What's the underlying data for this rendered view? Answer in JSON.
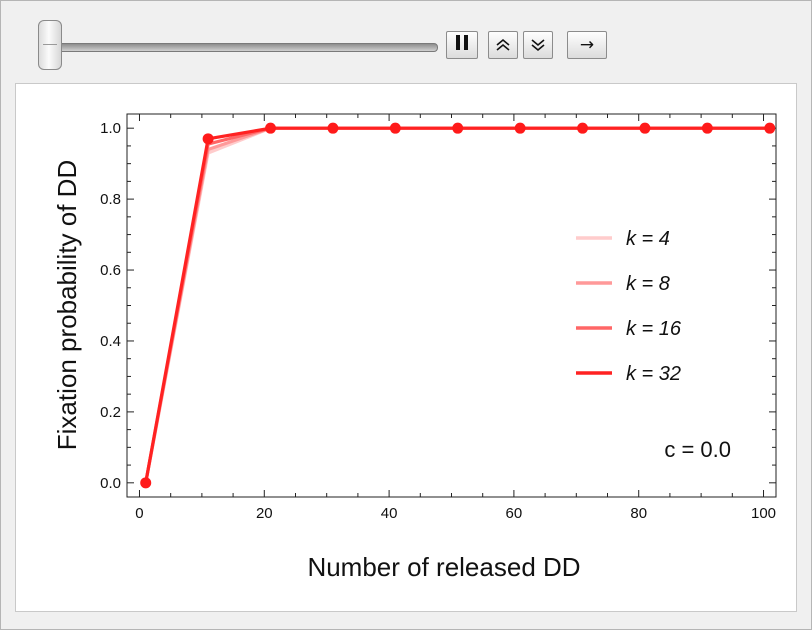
{
  "controls": {
    "slider_value": 0,
    "pause_icon": "pause-icon",
    "faster_icon": "double-chevron-up-icon",
    "slower_icon": "double-chevron-down-icon",
    "direction_glyph": "→",
    "direction_icon": "right-arrow-icon"
  },
  "colors": {
    "series": [
      "#ffcccc",
      "#ff9999",
      "#ff6666",
      "#ff2222"
    ],
    "points": "#ff1a1a"
  },
  "chart_data": {
    "type": "line",
    "title": "",
    "xlabel": "Number of released DD",
    "ylabel": "Fixation probability of DD",
    "xlim": [
      -2,
      102
    ],
    "ylim": [
      -0.04,
      1.04
    ],
    "xticks": [
      0,
      20,
      40,
      60,
      80,
      100
    ],
    "yticks": [
      0.0,
      0.2,
      0.4,
      0.6,
      0.8,
      1.0
    ],
    "xtick_labels": [
      "0",
      "20",
      "40",
      "60",
      "80",
      "100"
    ],
    "ytick_labels": [
      "0.0",
      "0.2",
      "0.4",
      "0.6",
      "0.8",
      "1.0"
    ],
    "x": [
      1,
      11,
      21,
      31,
      41,
      51,
      61,
      71,
      81,
      91,
      101
    ],
    "series": [
      {
        "name": "k = 4",
        "values": [
          0.0,
          0.93,
          1.0,
          1.0,
          1.0,
          1.0,
          1.0,
          1.0,
          1.0,
          1.0,
          1.0
        ]
      },
      {
        "name": "k = 8",
        "values": [
          0.0,
          0.94,
          1.0,
          1.0,
          1.0,
          1.0,
          1.0,
          1.0,
          1.0,
          1.0,
          1.0
        ]
      },
      {
        "name": "k = 16",
        "values": [
          0.0,
          0.955,
          1.0,
          1.0,
          1.0,
          1.0,
          1.0,
          1.0,
          1.0,
          1.0,
          1.0
        ]
      },
      {
        "name": "k = 32",
        "values": [
          0.0,
          0.97,
          1.0,
          1.0,
          1.0,
          1.0,
          1.0,
          1.0,
          1.0,
          1.0,
          1.0
        ]
      }
    ],
    "points_shown_for": "k = 32",
    "legend_position": "right",
    "annotation": "c = 0.0",
    "grid": false
  }
}
